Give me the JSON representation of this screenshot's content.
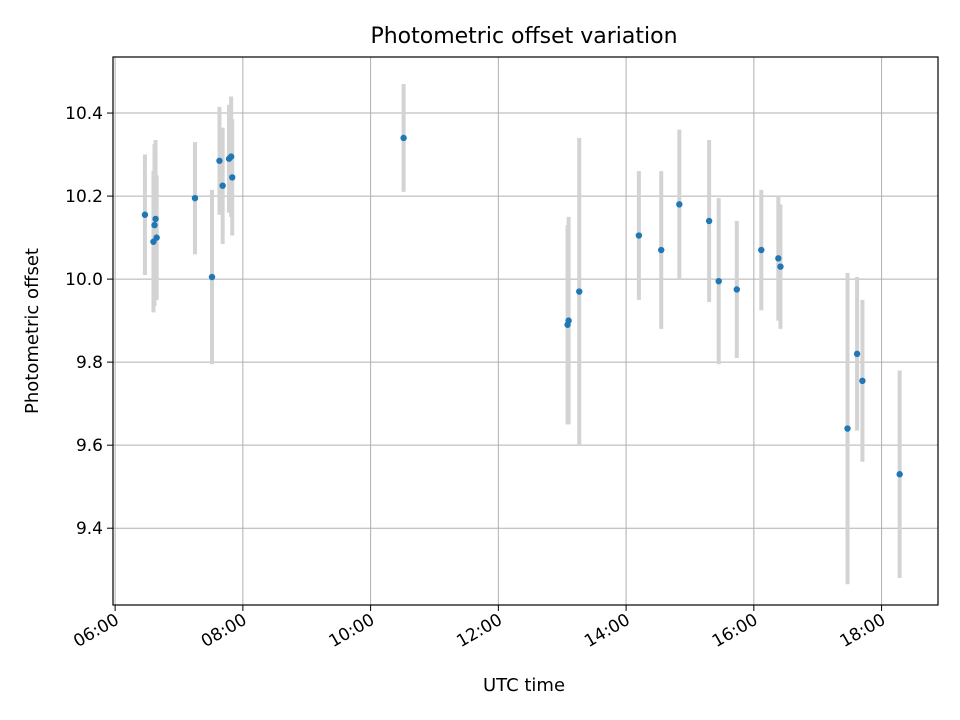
{
  "chart_data": {
    "type": "scatter",
    "title": "Photometric offset variation",
    "xlabel": "UTC time",
    "ylabel": "Photometric offset",
    "xlim": [
      "05:58",
      "18:53"
    ],
    "ylim": [
      9.215,
      10.535
    ],
    "x_ticks": [
      "06:00",
      "08:00",
      "10:00",
      "12:00",
      "14:00",
      "16:00",
      "18:00"
    ],
    "y_ticks": [
      "9.4",
      "9.6",
      "9.8",
      "10.0",
      "10.2",
      "10.4"
    ],
    "grid": true,
    "point_color": "#1f77b4",
    "errorbar_color": "#d3d3d3",
    "points": [
      {
        "time": "06:28",
        "value": 10.155,
        "err": 0.145
      },
      {
        "time": "06:36",
        "value": 10.09,
        "err": 0.17
      },
      {
        "time": "06:37",
        "value": 10.13,
        "err": 0.195
      },
      {
        "time": "06:38",
        "value": 10.145,
        "err": 0.19
      },
      {
        "time": "06:39",
        "value": 10.1,
        "err": 0.15
      },
      {
        "time": "07:15",
        "value": 10.195,
        "err": 0.135
      },
      {
        "time": "07:31",
        "value": 10.005,
        "err": 0.21
      },
      {
        "time": "07:38",
        "value": 10.285,
        "err": 0.13
      },
      {
        "time": "07:41",
        "value": 10.225,
        "err": 0.14
      },
      {
        "time": "07:47",
        "value": 10.29,
        "err": 0.13
      },
      {
        "time": "07:49",
        "value": 10.295,
        "err": 0.145
      },
      {
        "time": "07:50",
        "value": 10.245,
        "err": 0.14
      },
      {
        "time": "10:31",
        "value": 10.34,
        "err": 0.13
      },
      {
        "time": "13:05",
        "value": 9.89,
        "err": 0.24
      },
      {
        "time": "13:06",
        "value": 9.9,
        "err": 0.25
      },
      {
        "time": "13:16",
        "value": 9.97,
        "err": 0.37
      },
      {
        "time": "14:12",
        "value": 10.105,
        "err": 0.155
      },
      {
        "time": "14:33",
        "value": 10.07,
        "err": 0.19
      },
      {
        "time": "14:50",
        "value": 10.18,
        "err": 0.18
      },
      {
        "time": "15:18",
        "value": 10.14,
        "err": 0.195
      },
      {
        "time": "15:27",
        "value": 9.995,
        "err": 0.2
      },
      {
        "time": "15:44",
        "value": 9.975,
        "err": 0.165
      },
      {
        "time": "16:07",
        "value": 10.07,
        "err": 0.145
      },
      {
        "time": "16:23",
        "value": 10.05,
        "err": 0.15
      },
      {
        "time": "16:25",
        "value": 10.03,
        "err": 0.15
      },
      {
        "time": "17:28",
        "value": 9.64,
        "err": 0.375
      },
      {
        "time": "17:37",
        "value": 9.82,
        "err": 0.185
      },
      {
        "time": "17:42",
        "value": 9.755,
        "err": 0.195
      },
      {
        "time": "18:17",
        "value": 9.53,
        "err": 0.25
      }
    ]
  }
}
